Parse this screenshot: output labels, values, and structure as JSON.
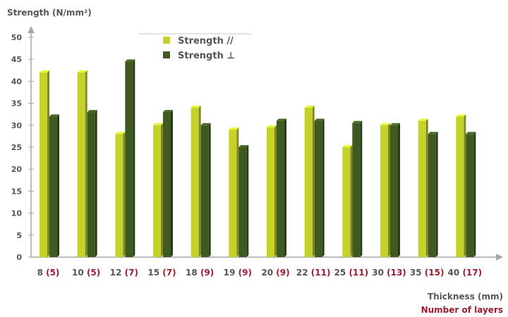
{
  "chart_data": {
    "type": "bar",
    "ylabel": "Strength (N/mm²)",
    "xlabel": "Thickness (mm)",
    "xlabel_secondary": "Number of layers",
    "ylim": [
      0,
      50
    ],
    "yticks": [
      0,
      5,
      10,
      15,
      20,
      25,
      30,
      35,
      40,
      45,
      50
    ],
    "grid": false,
    "legend_position": "top-center",
    "categories": [
      {
        "thickness": "8",
        "layers": "(5)"
      },
      {
        "thickness": "10",
        "layers": "(5)"
      },
      {
        "thickness": "12",
        "layers": "(7)"
      },
      {
        "thickness": "15",
        "layers": "(7)"
      },
      {
        "thickness": "18",
        "layers": "(9)"
      },
      {
        "thickness": "19",
        "layers": "(9)"
      },
      {
        "thickness": "20",
        "layers": "(9)"
      },
      {
        "thickness": "22",
        "layers": "(11)"
      },
      {
        "thickness": "25",
        "layers": "(11)"
      },
      {
        "thickness": "30",
        "layers": "(13)"
      },
      {
        "thickness": "35",
        "layers": "(15)"
      },
      {
        "thickness": "40",
        "layers": "(17)"
      }
    ],
    "series": [
      {
        "name": "Strength //",
        "color": "#c5d22a",
        "values": [
          42,
          42,
          28,
          30,
          34,
          29,
          29.5,
          34,
          25,
          30,
          31,
          32
        ]
      },
      {
        "name": "Strength ⊥",
        "color": "#3f5a20",
        "values": [
          32,
          33,
          44.5,
          33,
          30,
          25,
          31,
          31,
          30.5,
          30,
          28,
          28
        ]
      }
    ],
    "colors": {
      "axis": "#a7a7a7",
      "text": "#555555",
      "accent": "#9c1c2c"
    }
  }
}
